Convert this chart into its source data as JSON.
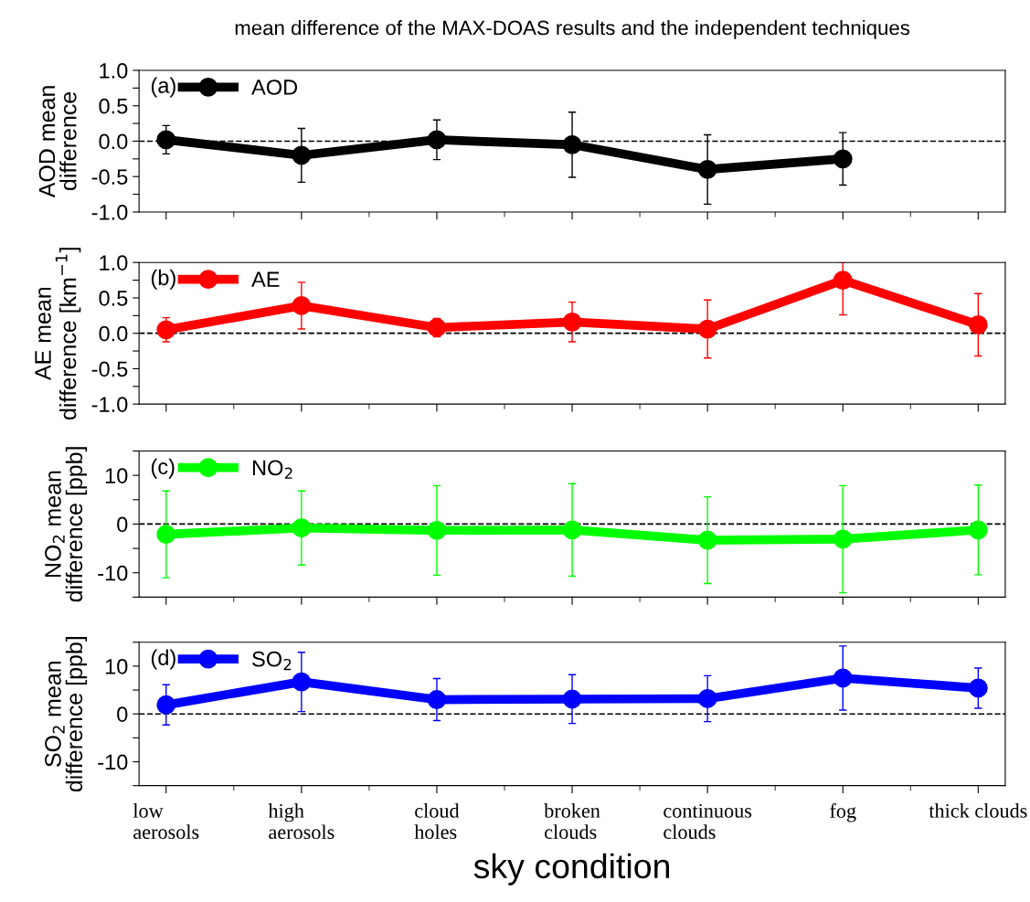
{
  "chart_data": [
    {
      "type": "line",
      "title": "mean difference of the MAX-DOAS results and the independent techniques",
      "ylabel": "AOD mean\ndifference",
      "annotations": [
        "(a)"
      ],
      "categories": [
        null,
        null,
        null,
        null,
        null,
        null,
        null
      ],
      "series": [
        {
          "name": "AOD",
          "color": "#000000",
          "values": [
            0.02,
            -0.2,
            0.02,
            -0.05,
            -0.4,
            -0.25,
            null
          ],
          "errors": [
            0.2,
            0.38,
            0.28,
            0.46,
            0.49,
            0.37,
            null
          ]
        }
      ],
      "ylim": [
        -1.0,
        1.0
      ],
      "yticks": [
        {
          "value": -1.0,
          "label": "-1.0"
        },
        {
          "value": -0.75,
          "label": null
        },
        {
          "value": -0.5,
          "label": "-0.5"
        },
        {
          "value": -0.25,
          "label": null
        },
        {
          "value": 0.0,
          "label": "0.0"
        },
        {
          "value": 0.25,
          "label": null
        },
        {
          "value": 0.5,
          "label": "0.5"
        },
        {
          "value": 0.75,
          "label": null
        },
        {
          "value": 1.0,
          "label": "1.0"
        }
      ],
      "ref_lines": [
        {
          "axis": "y",
          "value": 0,
          "color": "#000000",
          "line_style": "dashed"
        }
      ],
      "legend": "top left",
      "marker": "circle",
      "line_style": "solid",
      "grid": false,
      "tick_labels": "y"
    },
    {
      "type": "line",
      "ylabel": "AE mean\ndifference [km$^{−1}$]",
      "annotations": [
        "(b)"
      ],
      "categories": [
        null,
        null,
        null,
        null,
        null,
        null,
        null
      ],
      "series": [
        {
          "name": "AE",
          "color": "#ff0000",
          "values": [
            0.05,
            0.39,
            0.08,
            0.16,
            0.06,
            0.75,
            0.12
          ],
          "errors": [
            0.17,
            0.33,
            0.13,
            0.28,
            0.41,
            [
              0.26,
              1.0
            ],
            0.44
          ]
        }
      ],
      "ylim": [
        -1.0,
        1.0
      ],
      "yticks": [
        {
          "value": -1.0,
          "label": "-1.0"
        },
        {
          "value": -0.75,
          "label": null
        },
        {
          "value": -0.5,
          "label": "-0.5"
        },
        {
          "value": -0.25,
          "label": null
        },
        {
          "value": 0.0,
          "label": "0.0"
        },
        {
          "value": 0.25,
          "label": null
        },
        {
          "value": 0.5,
          "label": "0.5"
        },
        {
          "value": 0.75,
          "label": null
        },
        {
          "value": 1.0,
          "label": "1.0"
        }
      ],
      "ref_lines": [
        {
          "axis": "y",
          "value": 0,
          "color": "#000000",
          "line_style": "dashed"
        }
      ],
      "legend": "top left",
      "marker": "circle",
      "line_style": "solid",
      "grid": false,
      "tick_labels": "y"
    },
    {
      "type": "line",
      "ylabel": "NO$_{2}$ mean\ndifference [ppb]",
      "annotations": [
        "(c)"
      ],
      "categories": [
        null,
        null,
        null,
        null,
        null,
        null,
        null
      ],
      "series": [
        {
          "name": "NO$_{2}$",
          "color": "#00ff00",
          "values": [
            -2.1,
            -0.8,
            -1.3,
            -1.2,
            -3.3,
            -3.1,
            -1.2
          ],
          "errors": [
            8.9,
            7.6,
            9.2,
            9.5,
            8.9,
            11,
            9.2
          ]
        }
      ],
      "ylim": [
        -15,
        15
      ],
      "yticks": [
        {
          "value": -15,
          "label": null
        },
        {
          "value": -10,
          "label": "-10"
        },
        {
          "value": -5,
          "label": null
        },
        0,
        {
          "value": 5,
          "label": null
        },
        10,
        {
          "value": 15,
          "label": null
        }
      ],
      "ref_lines": [
        {
          "axis": "y",
          "value": 0,
          "color": "#000000",
          "line_style": "dashed"
        }
      ],
      "legend": "top left",
      "marker": "circle",
      "line_style": "solid",
      "grid": false,
      "tick_labels": "y"
    },
    {
      "type": "line",
      "ylabel": "SO$_{2}$ mean\ndifference [ppb]",
      "xlabel": "sky condition",
      "annotations": [
        "(d)"
      ],
      "categories": [
        "low\naerosols",
        "high\naerosols",
        "cloud\nholes",
        "broken\nclouds",
        "continuous\nclouds",
        "fog",
        "thick clouds"
      ],
      "series": [
        {
          "name": "SO$_{2}$",
          "color": "#0000ff",
          "values": [
            1.9,
            6.7,
            3.0,
            3.1,
            3.2,
            7.5,
            5.4
          ],
          "errors": [
            4.2,
            6.2,
            4.4,
            5.1,
            4.8,
            6.7,
            4.2
          ]
        }
      ],
      "ylim": [
        -15,
        15
      ],
      "yticks": [
        {
          "value": -15,
          "label": null
        },
        {
          "value": -10,
          "label": "-10"
        },
        {
          "value": -5,
          "label": null
        },
        0,
        {
          "value": 5,
          "label": null
        },
        10,
        {
          "value": 15,
          "label": null
        }
      ],
      "ref_lines": [
        {
          "axis": "y",
          "value": 0,
          "color": "#000000",
          "line_style": "dashed"
        }
      ],
      "legend": "top left",
      "marker": "circle",
      "line_style": "solid",
      "grid": false
    }
  ]
}
